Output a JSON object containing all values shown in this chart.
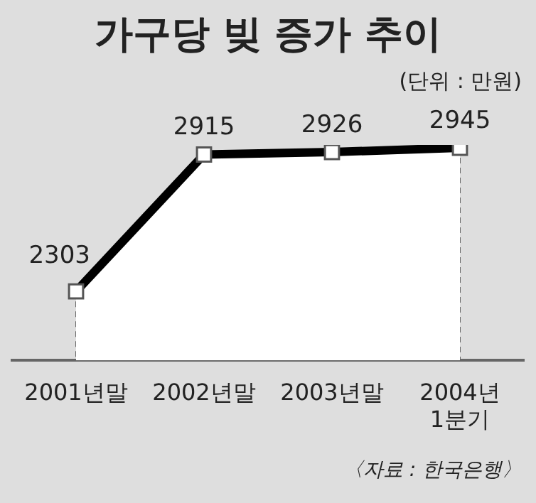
{
  "chart_data": {
    "type": "area",
    "title": "가구당 빚 증가 추이",
    "subtitle": "(단위 : 만원)",
    "categories": [
      "2001년말",
      "2002년말",
      "2003년말",
      "2004년\n1분기"
    ],
    "series": [
      {
        "color": "#000000",
        "values": [
          2303,
          2915,
          2926,
          2945
        ]
      }
    ],
    "data_labels": true,
    "marker": "square",
    "legend": false,
    "grid": false,
    "tick_labels": "x",
    "annotations": [
      "〈자료 : 한국은행〉"
    ]
  }
}
